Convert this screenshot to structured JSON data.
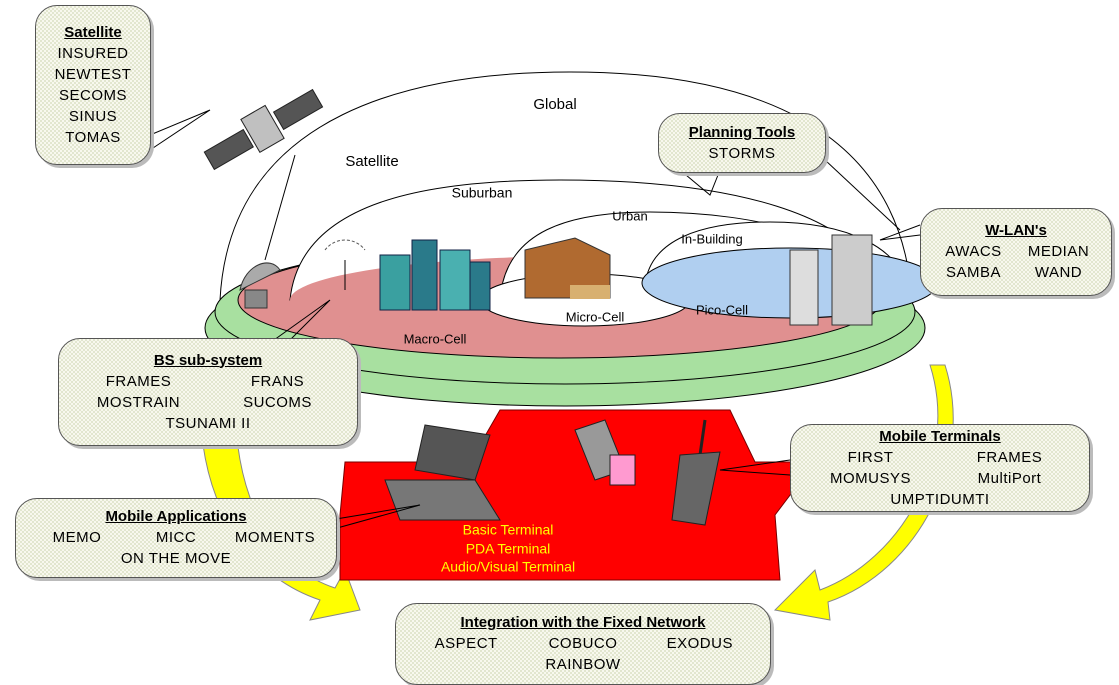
{
  "zones": [
    "Global",
    "Satellite",
    "Suburban",
    "Urban",
    "In-Building"
  ],
  "cells": [
    "Macro-Cell",
    "Micro-Cell",
    "Pico-Cell"
  ],
  "terminals": [
    "Basic Terminal",
    "PDA Terminal",
    "Audio/Visual Terminal"
  ],
  "callouts": [
    {
      "title": "Satellite",
      "items": [
        "INSURED",
        "NEWTEST",
        "SECOMS",
        "SINUS",
        "TOMAS"
      ]
    },
    {
      "title": "Planning Tools",
      "items": [
        "STORMS"
      ]
    },
    {
      "title": "W-LAN's",
      "items": [
        "AWACS",
        "MEDIAN",
        "SAMBA",
        "WAND"
      ]
    },
    {
      "title": "BS sub-system",
      "items": [
        "FRAMES",
        "FRANS",
        "MOSTRAIN",
        "SUCOMS",
        "TSUNAMI II"
      ]
    },
    {
      "title": "Mobile Terminals",
      "items": [
        "FIRST",
        "FRAMES",
        "MOMUSYS",
        "MultiPort",
        "UMPTIDUMTI"
      ]
    },
    {
      "title": "Mobile Applications",
      "items": [
        "MEMO",
        "MICC",
        "MOMENTS",
        "ON THE MOVE"
      ]
    },
    {
      "title": "Integration with the Fixed Network",
      "items": [
        "ASPECT",
        "COBUCO",
        "EXODUS",
        "RAINBOW"
      ]
    }
  ]
}
